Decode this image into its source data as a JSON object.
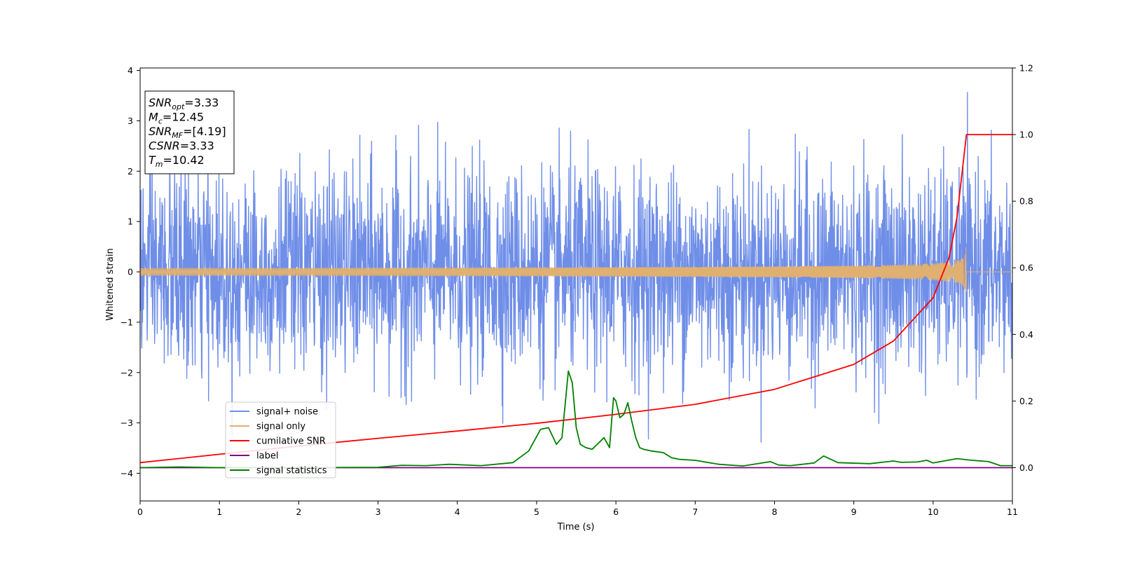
{
  "chart_data": {
    "type": "line",
    "xlabel": "Time (s)",
    "ylabel": "Whitened strain",
    "xlim": [
      0,
      11
    ],
    "ylim_left": [
      -4.55,
      4.05
    ],
    "ylim_right": [
      -0.1,
      1.2
    ],
    "x_ticks": [
      "0",
      "1",
      "2",
      "3",
      "4",
      "5",
      "6",
      "7",
      "8",
      "9",
      "10",
      "11"
    ],
    "y_ticks_left": [
      "4",
      "3",
      "2",
      "1",
      "0",
      "−1",
      "−2",
      "−3",
      "−4"
    ],
    "y_ticks_right": [
      "1.2",
      "1.0",
      "0.8",
      "0.6",
      "0.4",
      "0.2",
      "0.0"
    ],
    "grid": false,
    "legend_position": "lower-left",
    "info_box": [
      {
        "base": "SNR",
        "sub": "opt",
        "rest": "=3.33"
      },
      {
        "base": "M",
        "sub": "c",
        "rest": "=12.45"
      },
      {
        "base": "SNR",
        "sub": "MF",
        "rest": "=[4.19]"
      },
      {
        "base": "CSNR",
        "sub": "",
        "rest": "=3.33"
      },
      {
        "base": "T",
        "sub": "m",
        "rest": "=10.42"
      }
    ],
    "series": [
      {
        "name": "signal+ noise",
        "color": "#6f8ee8",
        "axis": "left",
        "kind": "gaussian-noise",
        "std": 1.0,
        "x_range": [
          0,
          11
        ],
        "samples": 2600
      },
      {
        "name": "signal only",
        "color": "#e0b070",
        "axis": "left",
        "kind": "chirp",
        "merger_time": 10.42,
        "peak_amplitude": 0.58
      },
      {
        "name": "cumilative SNR",
        "color": "#ff0000",
        "axis": "right",
        "x": [
          0,
          1,
          2,
          3,
          4,
          5,
          6,
          7,
          8,
          9,
          9.5,
          10,
          10.2,
          10.3,
          10.42,
          11
        ],
        "y": [
          0.015,
          0.04,
          0.065,
          0.088,
          0.11,
          0.133,
          0.16,
          0.19,
          0.235,
          0.31,
          0.38,
          0.51,
          0.63,
          0.75,
          1.0,
          1.0
        ]
      },
      {
        "name": "label",
        "color": "#800080",
        "axis": "right",
        "x": [
          0,
          11
        ],
        "y": [
          0.0,
          0.0
        ]
      },
      {
        "name": "signal statistics",
        "color": "#008000",
        "axis": "right",
        "x": [
          0,
          0.5,
          1,
          2,
          3,
          3.3,
          3.6,
          3.9,
          4.3,
          4.7,
          4.9,
          5.05,
          5.15,
          5.25,
          5.32,
          5.4,
          5.45,
          5.5,
          5.55,
          5.62,
          5.7,
          5.85,
          5.92,
          5.97,
          6.0,
          6.05,
          6.1,
          6.15,
          6.2,
          6.25,
          6.3,
          6.35,
          6.45,
          6.6,
          6.7,
          6.8,
          7.0,
          7.3,
          7.6,
          7.95,
          8.05,
          8.2,
          8.5,
          8.62,
          8.8,
          9.2,
          9.5,
          9.6,
          9.8,
          9.92,
          10.0,
          10.3,
          10.45,
          10.7,
          10.85,
          11
        ],
        "y": [
          0.0,
          0.002,
          0.0,
          0.0,
          0.001,
          0.007,
          0.006,
          0.01,
          0.006,
          0.015,
          0.05,
          0.115,
          0.12,
          0.07,
          0.09,
          0.29,
          0.255,
          0.12,
          0.07,
          0.06,
          0.055,
          0.09,
          0.06,
          0.21,
          0.2,
          0.15,
          0.16,
          0.195,
          0.14,
          0.09,
          0.06,
          0.055,
          0.05,
          0.045,
          0.03,
          0.025,
          0.022,
          0.01,
          0.005,
          0.018,
          0.008,
          0.006,
          0.014,
          0.035,
          0.015,
          0.012,
          0.02,
          0.016,
          0.017,
          0.022,
          0.014,
          0.027,
          0.023,
          0.018,
          0.006,
          0.006
        ]
      }
    ]
  }
}
